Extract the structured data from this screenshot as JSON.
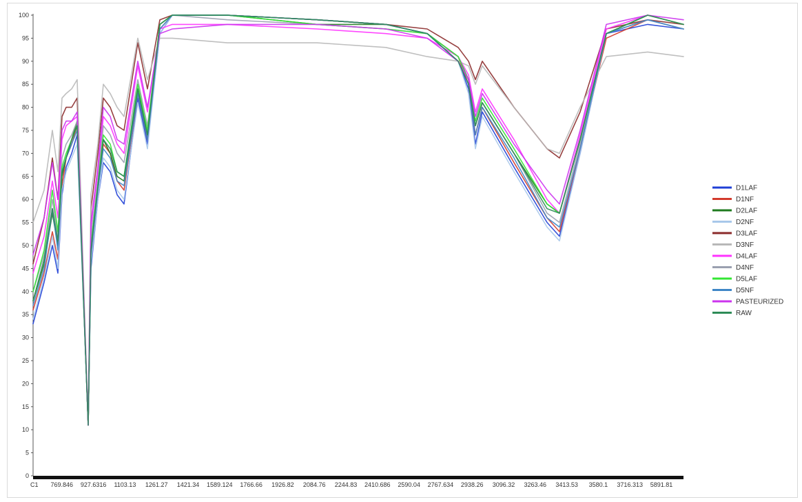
{
  "chart_data": {
    "type": "line",
    "title": "",
    "xlabel": "",
    "ylabel": "",
    "ylim": [
      0,
      100
    ],
    "grid": false,
    "legend_position": "right",
    "y_ticks": [
      "0",
      "5",
      "10",
      "15",
      "20",
      "25",
      "30",
      "35",
      "40",
      "45",
      "50",
      "55",
      "60",
      "65",
      "70",
      "75",
      "80",
      "85",
      "90",
      "95",
      "100"
    ],
    "x_tick_labels": [
      "C1",
      "769.846",
      "927.6316",
      "1103.13",
      "1261.27",
      "1421.34",
      "1589.124",
      "1766.66",
      "1926.82",
      "2084.76",
      "2244.83",
      "2410.686",
      "2590.04",
      "2767.634",
      "2938.26",
      "3096.32",
      "3263.46",
      "3413.53",
      "3580.1",
      "3716.313",
      "5891.81"
    ],
    "series": [
      {
        "name": "D1LAF",
        "color": "#1f3fd6",
        "values": [
          33,
          42,
          50,
          44,
          61,
          67,
          70,
          74,
          12,
          45,
          60,
          68,
          66,
          61,
          59,
          82,
          72,
          96,
          100,
          100,
          99,
          98,
          96,
          90,
          84,
          72,
          79,
          67,
          55,
          52,
          70,
          96,
          98,
          97
        ]
      },
      {
        "name": "D1NF",
        "color": "#d33a2c",
        "values": [
          36,
          44,
          53,
          47,
          63,
          69,
          72,
          76,
          11,
          47,
          62,
          72,
          70,
          64,
          62,
          83,
          73,
          97,
          100,
          100,
          99,
          98,
          96,
          91,
          85,
          74,
          80,
          68,
          56,
          53,
          71,
          95,
          99,
          97
        ]
      },
      {
        "name": "D2LAF",
        "color": "#1e7a1e",
        "values": [
          38,
          46,
          57,
          50,
          65,
          69,
          73,
          77,
          11,
          49,
          63,
          73,
          70,
          65,
          64,
          84,
          74,
          98,
          100,
          100,
          98,
          98,
          96,
          91,
          86,
          76,
          81,
          70,
          59,
          57,
          73,
          96,
          100,
          98
        ]
      },
      {
        "name": "D2NF",
        "color": "#a8c8ea",
        "values": [
          34,
          43,
          52,
          45,
          62,
          66,
          69,
          72,
          12,
          46,
          60,
          69,
          67,
          62,
          60,
          81,
          71,
          96,
          100,
          100,
          99,
          98,
          96,
          90,
          83,
          71,
          78,
          66,
          54,
          51,
          70,
          96,
          99,
          97
        ]
      },
      {
        "name": "D3LAF",
        "color": "#8b2a2a",
        "values": [
          46,
          56,
          69,
          60,
          78,
          80,
          80,
          82,
          11,
          58,
          70,
          82,
          80,
          76,
          75,
          94,
          84,
          99,
          100,
          100,
          99,
          98,
          97,
          93,
          90,
          86,
          90,
          80,
          71,
          69,
          79,
          97,
          99,
          98
        ]
      },
      {
        "name": "D3NF",
        "color": "#b8b8b8",
        "values": [
          55,
          62,
          75,
          66,
          82,
          83,
          84,
          86,
          11,
          61,
          72,
          85,
          83,
          80,
          78,
          95,
          86,
          95,
          95,
          94,
          94,
          93,
          91,
          90,
          89,
          85,
          89,
          80,
          71,
          70,
          80,
          91,
          92,
          91
        ]
      },
      {
        "name": "D4LAF",
        "color": "#ff33ff",
        "values": [
          44,
          52,
          64,
          56,
          73,
          76,
          77,
          78,
          11,
          54,
          66,
          78,
          76,
          72,
          70,
          89,
          79,
          97,
          98,
          98,
          97,
          96,
          95,
          91,
          87,
          79,
          84,
          73,
          60,
          57,
          74,
          97,
          100,
          98
        ]
      },
      {
        "name": "D4NF",
        "color": "#9aa0b0",
        "values": [
          40,
          48,
          60,
          52,
          69,
          72,
          74,
          77,
          11,
          52,
          64,
          76,
          74,
          70,
          68,
          86,
          76,
          97,
          100,
          99,
          98,
          97,
          96,
          91,
          86,
          76,
          81,
          70,
          57,
          55,
          72,
          96,
          99,
          97
        ]
      },
      {
        "name": "D5LAF",
        "color": "#33e633",
        "values": [
          40,
          49,
          62,
          53,
          67,
          70,
          73,
          76,
          11,
          50,
          63,
          74,
          72,
          66,
          65,
          85,
          75,
          98,
          100,
          100,
          98,
          97,
          96,
          91,
          86,
          77,
          82,
          71,
          59,
          57,
          73,
          96,
          100,
          98
        ]
      },
      {
        "name": "D5NF",
        "color": "#3f86c6",
        "values": [
          37,
          45,
          58,
          49,
          66,
          69,
          72,
          75,
          11,
          48,
          62,
          71,
          69,
          64,
          63,
          83,
          73,
          97,
          100,
          100,
          99,
          98,
          96,
          90,
          85,
          74,
          80,
          69,
          56,
          54,
          71,
          96,
          99,
          97
        ]
      },
      {
        "name": "PASTEURIZED",
        "color": "#cc33ee",
        "values": [
          48,
          56,
          68,
          60,
          75,
          77,
          77,
          79,
          11,
          55,
          67,
          80,
          78,
          73,
          72,
          90,
          80,
          96,
          97,
          98,
          98,
          97,
          95,
          90,
          86,
          78,
          83,
          72,
          62,
          59,
          75,
          98,
          100,
          99
        ]
      },
      {
        "name": "RAW",
        "color": "#2e8b57",
        "values": [
          38,
          47,
          58,
          51,
          66,
          69,
          73,
          76,
          11,
          49,
          63,
          73,
          71,
          66,
          65,
          84,
          74,
          98,
          100,
          100,
          99,
          98,
          96,
          90,
          85,
          76,
          81,
          70,
          58,
          57,
          73,
          96,
          100,
          98
        ]
      }
    ]
  }
}
